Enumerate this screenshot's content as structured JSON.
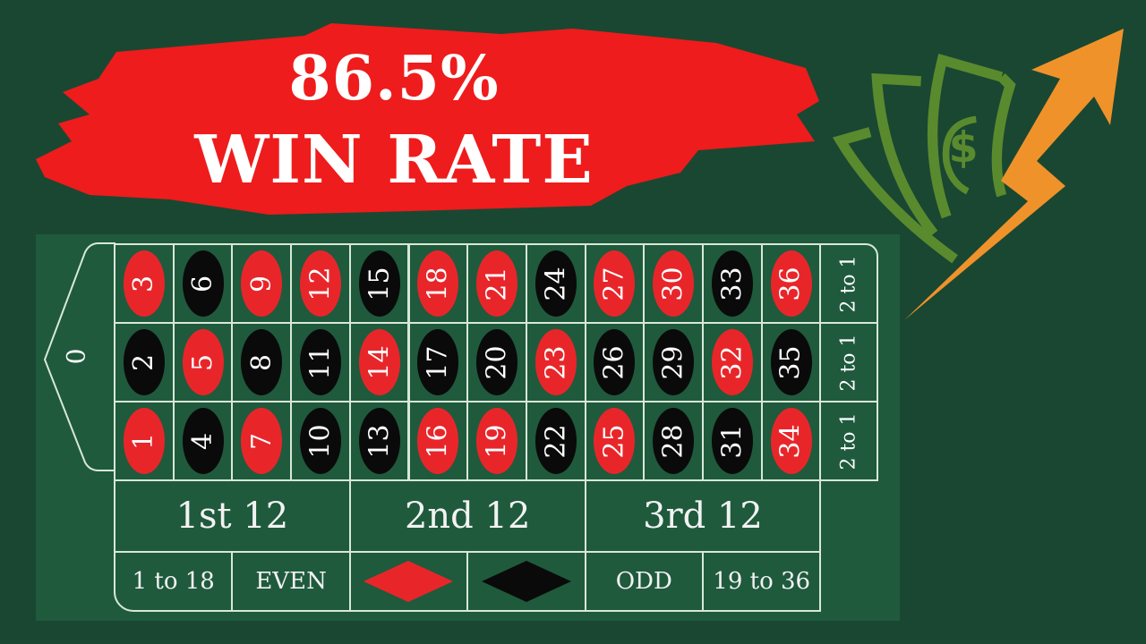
{
  "headline": {
    "line1": "86.5%",
    "line2": "WIN RATE"
  },
  "colors": {
    "background": "#1a4732",
    "banner": "#ee1c1c",
    "red": "#e8262a",
    "black": "#0a0a0a",
    "money_icon": "#5a8a2e",
    "arrow": "#f0922a"
  },
  "icons": [
    "money-bills-icon",
    "growth-arrow-icon"
  ],
  "board": {
    "zero": "0",
    "numbers": [
      {
        "n": "1",
        "c": "red"
      },
      {
        "n": "2",
        "c": "black"
      },
      {
        "n": "3",
        "c": "red"
      },
      {
        "n": "4",
        "c": "black"
      },
      {
        "n": "5",
        "c": "red"
      },
      {
        "n": "6",
        "c": "black"
      },
      {
        "n": "7",
        "c": "red"
      },
      {
        "n": "8",
        "c": "black"
      },
      {
        "n": "9",
        "c": "red"
      },
      {
        "n": "10",
        "c": "black"
      },
      {
        "n": "11",
        "c": "black"
      },
      {
        "n": "12",
        "c": "red"
      },
      {
        "n": "13",
        "c": "black"
      },
      {
        "n": "14",
        "c": "red"
      },
      {
        "n": "15",
        "c": "black"
      },
      {
        "n": "16",
        "c": "red"
      },
      {
        "n": "17",
        "c": "black"
      },
      {
        "n": "18",
        "c": "red"
      },
      {
        "n": "19",
        "c": "red"
      },
      {
        "n": "20",
        "c": "black"
      },
      {
        "n": "21",
        "c": "red"
      },
      {
        "n": "22",
        "c": "black"
      },
      {
        "n": "23",
        "c": "red"
      },
      {
        "n": "24",
        "c": "black"
      },
      {
        "n": "25",
        "c": "red"
      },
      {
        "n": "26",
        "c": "black"
      },
      {
        "n": "27",
        "c": "red"
      },
      {
        "n": "28",
        "c": "black"
      },
      {
        "n": "29",
        "c": "black"
      },
      {
        "n": "30",
        "c": "red"
      },
      {
        "n": "31",
        "c": "black"
      },
      {
        "n": "32",
        "c": "red"
      },
      {
        "n": "33",
        "c": "black"
      },
      {
        "n": "34",
        "c": "red"
      },
      {
        "n": "35",
        "c": "black"
      },
      {
        "n": "36",
        "c": "red"
      }
    ],
    "columns": [
      "2 to 1",
      "2 to 1",
      "2 to 1"
    ],
    "dozens": [
      "1st 12",
      "2nd 12",
      "3rd 12"
    ],
    "even_bets": {
      "low": "1 to 18",
      "even": "EVEN",
      "red": "red",
      "black": "black",
      "odd": "ODD",
      "high": "19 to 36"
    }
  }
}
